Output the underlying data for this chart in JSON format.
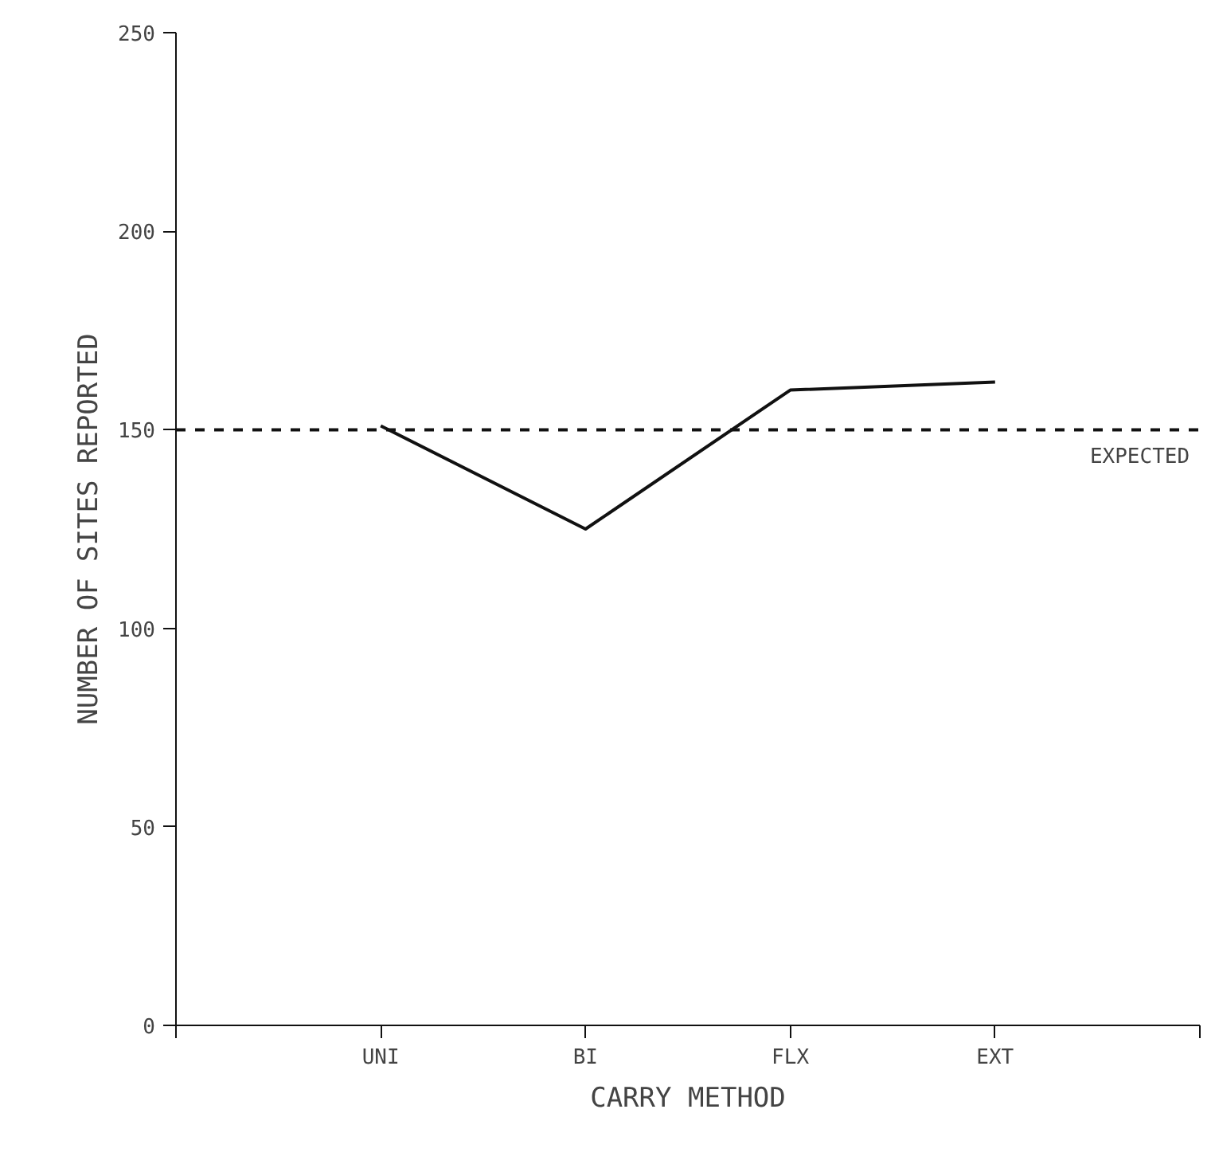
{
  "chart_data": {
    "type": "line",
    "xlabel": "CARRY METHOD",
    "ylabel": "NUMBER OF SITES REPORTED",
    "categories": [
      "UNI",
      "BI",
      "FLX",
      "EXT"
    ],
    "series": [
      {
        "color": "#111111",
        "values": [
          151,
          125,
          160,
          162
        ]
      }
    ],
    "ylim": [
      0,
      250
    ],
    "yticks": [
      0,
      50,
      100,
      150,
      200,
      250
    ],
    "ref_lines": [
      {
        "axis": "y",
        "value": 150,
        "label": "EXPECTED",
        "line_style": "dashed",
        "color": "#111111"
      }
    ],
    "grid": false,
    "marker": "none",
    "line_style": "solid"
  }
}
